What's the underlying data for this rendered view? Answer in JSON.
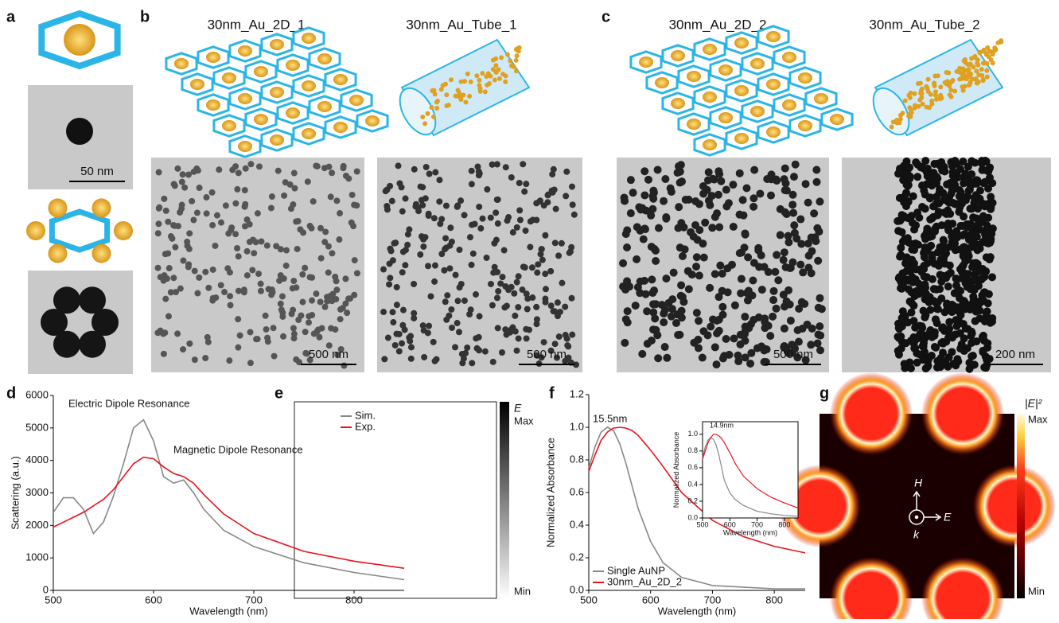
{
  "panel_labels": [
    "a",
    "b",
    "c",
    "d",
    "e",
    "f",
    "g"
  ],
  "sample_titles": [
    "30nm_Au_2D_1",
    "30nm_Au_Tube_1",
    "30nm_Au_2D_2",
    "30nm_Au_Tube_2"
  ],
  "scale_bars": [
    "50 nm",
    "500 nm",
    "500 nm",
    "500 nm",
    "200 nm"
  ],
  "field_map_e": {
    "symbol": "E",
    "max": "Max",
    "min": "Min"
  },
  "field_map_g": {
    "symbol": "|E|²",
    "max": "Max",
    "min": "Min",
    "h": "H",
    "e": "E",
    "k": "k"
  },
  "chart_data": [
    {
      "type": "line",
      "xlabel": "Wavelength (nm)",
      "ylabel": "Scattering (a.u.)",
      "annotations": [
        "Electric Dipole Resonance",
        "Magnetic Dipole Resonance"
      ],
      "x": [
        500,
        510,
        520,
        530,
        540,
        550,
        560,
        570,
        580,
        590,
        600,
        610,
        620,
        630,
        640,
        650,
        670,
        700,
        750,
        800,
        850
      ],
      "series": [
        {
          "name": "Sim.",
          "color": "#888888",
          "values": [
            2400,
            2850,
            2850,
            2500,
            1750,
            2100,
            2900,
            3900,
            5000,
            5250,
            4600,
            3500,
            3300,
            3400,
            3000,
            2500,
            1850,
            1350,
            850,
            550,
            330
          ]
        },
        {
          "name": "Exp.",
          "color": "#e8131b",
          "values": [
            1950,
            2100,
            2250,
            2400,
            2600,
            2800,
            3100,
            3500,
            3900,
            4100,
            4050,
            3800,
            3600,
            3500,
            3300,
            2950,
            2350,
            1750,
            1200,
            900,
            680
          ]
        }
      ],
      "xlim": [
        500,
        850
      ],
      "xticks": [
        500,
        600,
        700,
        800
      ],
      "ylim": [
        0,
        6000
      ],
      "yticks": [
        0,
        1000,
        2000,
        3000,
        4000,
        5000,
        6000
      ]
    },
    {
      "type": "line",
      "xlabel": "Wavelength (nm)",
      "ylabel": "Normalized Absorbance",
      "annotations": [
        "15.5nm"
      ],
      "x": [
        500,
        510,
        520,
        530,
        540,
        550,
        560,
        570,
        580,
        600,
        620,
        650,
        700,
        750,
        800,
        850
      ],
      "series": [
        {
          "name": "Single AuNP",
          "color": "#888888",
          "values": [
            0.75,
            0.88,
            0.97,
            1.0,
            0.98,
            0.9,
            0.78,
            0.64,
            0.5,
            0.3,
            0.17,
            0.08,
            0.03,
            0.02,
            0.01,
            0.01
          ]
        },
        {
          "name": "30nm_Au_2D_2",
          "color": "#e8131b",
          "values": [
            0.73,
            0.83,
            0.92,
            0.97,
            0.995,
            1.0,
            0.995,
            0.98,
            0.95,
            0.86,
            0.76,
            0.6,
            0.43,
            0.33,
            0.27,
            0.23
          ]
        }
      ],
      "xlim": [
        500,
        850
      ],
      "xticks": [
        500,
        600,
        700,
        800
      ],
      "ylim": [
        0,
        1.2
      ],
      "yticks": [
        {
          "value": 0,
          "label": "0.0"
        },
        0.2,
        0.4,
        0.6,
        0.8,
        {
          "value": 1,
          "label": "1.0"
        },
        1.2
      ]
    },
    {
      "type": "line",
      "xlabel": "Wavelength (nm)",
      "ylabel": "Normalized Absorbance",
      "annotations": [
        "14.9nm"
      ],
      "x": [
        500,
        510,
        520,
        530,
        540,
        550,
        560,
        570,
        580,
        600,
        620,
        650,
        700,
        750,
        800,
        850
      ],
      "series": [
        {
          "color": "#888888",
          "values": [
            0.72,
            0.85,
            0.93,
            0.96,
            0.94,
            0.87,
            0.75,
            0.6,
            0.45,
            0.3,
            0.22,
            0.15,
            0.08,
            0.05,
            0.03,
            0.02
          ]
        },
        {
          "color": "#e8131b",
          "values": [
            0.7,
            0.8,
            0.9,
            0.96,
            1.0,
            1.0,
            0.98,
            0.95,
            0.9,
            0.78,
            0.65,
            0.5,
            0.35,
            0.25,
            0.18,
            0.12
          ]
        }
      ],
      "xlim": [
        500,
        850
      ],
      "xticks": [
        500,
        600,
        700,
        800
      ],
      "ylim": [
        0,
        1.15
      ],
      "yticks": [
        {
          "value": 0,
          "label": "0.0"
        },
        0.2,
        0.4,
        0.6,
        0.8,
        {
          "value": 1,
          "label": "1.0"
        }
      ]
    }
  ]
}
